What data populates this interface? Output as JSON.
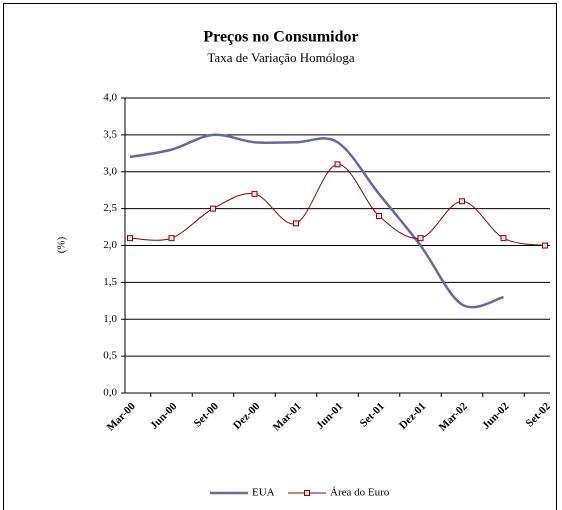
{
  "chart_data": {
    "type": "line",
    "title": "Preços no Consumidor",
    "subtitle": "Taxa de Variação Homóloga",
    "y_label": "(%)",
    "categories": [
      "Mar-00",
      "Jun-00",
      "Set-00",
      "Dez-00",
      "Mar-01",
      "Jun-01",
      "Set-01",
      "Dez-01",
      "Mar-02",
      "Jun-02",
      "Set-02"
    ],
    "series": [
      {
        "name": "EUA",
        "color": "#6666aa",
        "values": [
          3.2,
          3.3,
          3.5,
          3.4,
          3.4,
          3.4,
          2.7,
          2.0,
          1.2,
          1.3,
          null
        ]
      },
      {
        "name": "Área do Euro",
        "color": "#8b0000",
        "values": [
          2.1,
          2.1,
          2.5,
          2.7,
          2.3,
          3.1,
          2.4,
          2.1,
          2.6,
          2.1,
          2.0
        ]
      }
    ],
    "ylim": [
      0,
      4
    ],
    "yticks": [
      {
        "value": 0,
        "label": "0,0"
      },
      {
        "value": 0.5,
        "label": "0,5"
      },
      {
        "value": 1,
        "label": "1,0"
      },
      {
        "value": 1.5,
        "label": "1,5"
      },
      {
        "value": 2,
        "label": "2,0"
      },
      {
        "value": 2.5,
        "label": "2,5"
      },
      {
        "value": 3,
        "label": "3,0"
      },
      {
        "value": 3.5,
        "label": "3,5"
      },
      {
        "value": 4,
        "label": "4,0"
      }
    ],
    "grid": true,
    "legend": "bottom"
  }
}
